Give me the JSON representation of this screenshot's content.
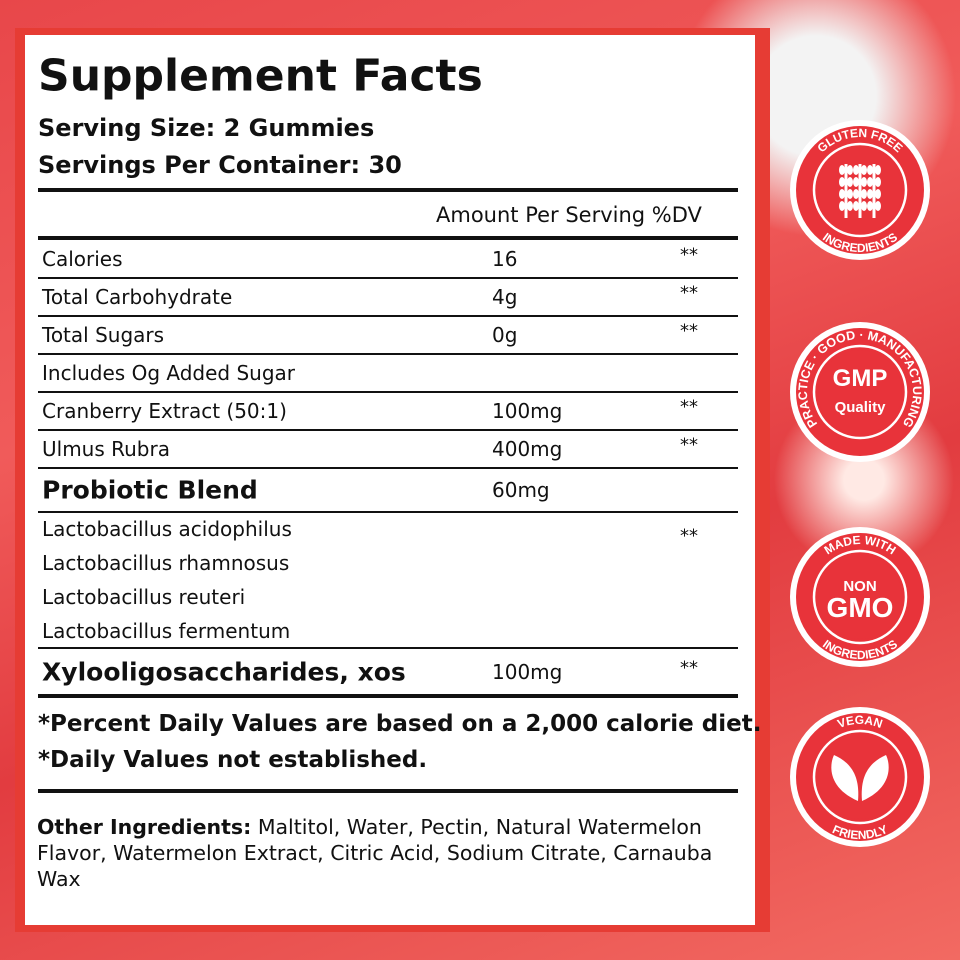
{
  "label": {
    "title": "Supplement Facts",
    "serving_size": "Serving Size: 2 Gummies",
    "servings_per_container": "Servings Per Container: 30",
    "column_header": "Amount Per Serving %DV",
    "rows": [
      {
        "name": "Calories",
        "amount": "16",
        "dv": "**"
      },
      {
        "name": "Total Carbohydrate",
        "amount": "4g",
        "dv": "**"
      },
      {
        "name": "Total Sugars",
        "amount": "0g",
        "dv": "**"
      },
      {
        "name": "Includes Og Added Sugar"
      },
      {
        "name": "Cranberry Extract (50:1)",
        "amount": "100mg",
        "dv": "**"
      },
      {
        "name": "Ulmus Rubra",
        "amount": "400mg",
        "dv": "**"
      },
      {
        "name": "Probiotic Blend",
        "amount": "60mg",
        "emphasis": true
      },
      {
        "names": [
          "Lactobacillus acidophilus",
          "Lactobacillus rhamnosus",
          "Lactobacillus reuteri",
          "Lactobacillus fermentum"
        ],
        "dv": "**"
      },
      {
        "name": "Xylooligosaccharides, xos",
        "amount": "100mg",
        "dv": "**",
        "emphasis": true
      }
    ],
    "footnotes": [
      "*Percent Daily Values are based on a 2,000 calorie diet.",
      "*Daily Values not established."
    ],
    "other_ingredients": {
      "label": "Other Ingredients:",
      "text": "Maltitol, Water, Pectin, Natural Watermelon Flavor, Watermelon Extract, Citric Acid, Sodium Citrate, Carnauba Wax"
    }
  },
  "badges": [
    {
      "top": "GLUTEN FREE",
      "bottom": "INGREDIENTS"
    },
    {
      "ring": "PRACTICE · GOOD · MANUFACTURING",
      "center": [
        "GMP",
        "Quality"
      ]
    },
    {
      "top": "MADE WITH",
      "bottom": "INGREDIENTS",
      "center": [
        "NON",
        "GMO"
      ]
    },
    {
      "top": "VEGAN",
      "bottom": "FRIENDLY"
    }
  ]
}
